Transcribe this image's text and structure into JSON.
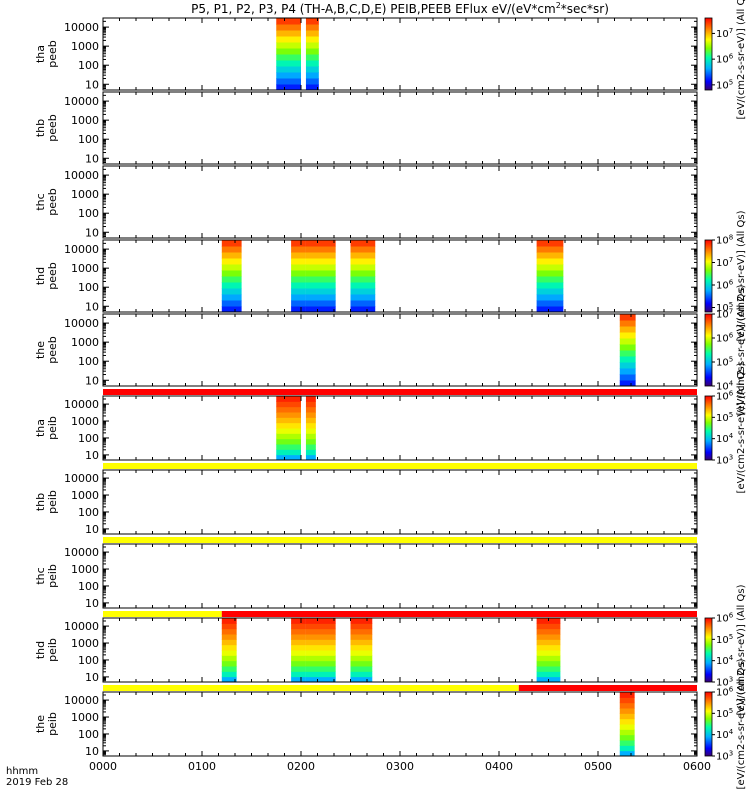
{
  "figure": {
    "title": "P5, P1, P2, P3, P4 (TH-A,B,C,D,E) PEIB,PEEB EFlux eV/(eV*cm",
    "title_sup": "2",
    "title_tail": "*sec*sr)",
    "footer_line1": "hhmm",
    "footer_line2": "2019 Feb 28"
  },
  "colors": {
    "flag_red": "#ff0000",
    "flag_yellow": "#ffff00",
    "axis": "#000000",
    "background": "#ffffff"
  },
  "chart_data": {
    "type": "heatmap",
    "description_units": "time in hhmm, energy in eV (log scale), color = energy flux",
    "x": {
      "label": "",
      "range": [
        "0000",
        "0600"
      ],
      "range_hours": [
        0,
        6
      ],
      "ticks": [
        "0000",
        "0100",
        "0200",
        "0300",
        "0400",
        "0500",
        "0600"
      ]
    },
    "y": {
      "scale": "log",
      "range": [
        5,
        30000
      ],
      "ticks": [
        "10",
        "100",
        "1000",
        "10000"
      ]
    },
    "panels": [
      {
        "label_line1": "tha",
        "label_line2": "peeb",
        "species": "electron",
        "blocks": [
          [
            1.75,
            2.0
          ],
          [
            2.05,
            2.18
          ]
        ],
        "color_range_log": [
          4.8,
          7.6
        ]
      },
      {
        "label_line1": "thb",
        "label_line2": "peeb",
        "species": "electron",
        "blocks": []
      },
      {
        "label_line1": "thc",
        "label_line2": "peeb",
        "species": "electron",
        "blocks": []
      },
      {
        "label_line1": "thd",
        "label_line2": "peeb",
        "species": "electron",
        "blocks": [
          [
            1.2,
            1.4
          ],
          [
            1.9,
            2.05
          ],
          [
            2.05,
            2.35
          ],
          [
            2.5,
            2.75
          ],
          [
            4.38,
            4.65
          ]
        ],
        "color_range_log": [
          4.8,
          8.0
        ]
      },
      {
        "label_line1": "the",
        "label_line2": "peeb",
        "species": "electron",
        "blocks": [
          [
            5.22,
            5.38
          ]
        ],
        "color_range_log": [
          4.0,
          7.0
        ]
      },
      {
        "label_line1": "tha",
        "label_line2": "peib",
        "species": "ion",
        "flag": {
          "segments": [
            [
              0,
              6,
              "red"
            ]
          ]
        },
        "blocks": [
          [
            1.75,
            2.0
          ],
          [
            2.05,
            2.15
          ]
        ],
        "color_range_log": [
          3.0,
          6.0
        ]
      },
      {
        "label_line1": "thb",
        "label_line2": "peib",
        "species": "ion",
        "flag": {
          "segments": [
            [
              0,
              6,
              "yellow"
            ]
          ]
        },
        "blocks": []
      },
      {
        "label_line1": "thc",
        "label_line2": "peib",
        "species": "ion",
        "flag": {
          "segments": [
            [
              0,
              6,
              "yellow"
            ]
          ]
        },
        "blocks": []
      },
      {
        "label_line1": "thd",
        "label_line2": "peib",
        "species": "ion",
        "flag": {
          "segments": [
            [
              0,
              1.2,
              "yellow"
            ],
            [
              1.2,
              6,
              "red"
            ]
          ]
        },
        "blocks": [
          [
            1.2,
            1.35
          ],
          [
            1.9,
            2.05
          ],
          [
            2.05,
            2.35
          ],
          [
            2.5,
            2.72
          ],
          [
            4.38,
            4.62
          ]
        ],
        "color_range_log": [
          3.0,
          6.0
        ]
      },
      {
        "label_line1": "the",
        "label_line2": "peib",
        "species": "ion",
        "flag": {
          "segments": [
            [
              0,
              4.2,
              "yellow"
            ],
            [
              4.2,
              6,
              "red"
            ]
          ]
        },
        "blocks": [
          [
            5.22,
            5.37
          ]
        ],
        "color_range_log": [
          3.0,
          6.0
        ]
      }
    ],
    "colorbars": [
      {
        "title": "[eV/(cm2-s-sr-eV)] (All Qs)",
        "range_log": [
          4.8,
          7.6
        ],
        "ticks": [
          {
            "base": "10",
            "exp": "7",
            "log": 7
          },
          {
            "base": "10",
            "exp": "6",
            "log": 6
          },
          {
            "base": "10",
            "exp": "5",
            "log": 5
          }
        ]
      },
      {
        "title": "[eV/(cm2-s-sr-eV)] (All Qs)",
        "range_log": [
          4.8,
          8.0
        ],
        "ticks": [
          {
            "base": "10",
            "exp": "8",
            "log": 8
          },
          {
            "base": "10",
            "exp": "7",
            "log": 7
          },
          {
            "base": "10",
            "exp": "6",
            "log": 6
          },
          {
            "base": "10",
            "exp": "5",
            "log": 5
          }
        ]
      },
      {
        "title": "[eV/(cm2-s-sr-eV)] (All Qs)",
        "range_log": [
          4.0,
          7.0
        ],
        "ticks": [
          {
            "base": "10",
            "exp": "7",
            "log": 7
          },
          {
            "base": "10",
            "exp": "6",
            "log": 6
          },
          {
            "base": "10",
            "exp": "5",
            "log": 5
          },
          {
            "base": "10",
            "exp": "4",
            "log": 4
          }
        ]
      },
      {
        "title": "[eV/(cm2-s-sr-eV)] (All Qs)",
        "range_log": [
          3.0,
          6.0
        ],
        "ticks": [
          {
            "base": "10",
            "exp": "6",
            "log": 6
          },
          {
            "base": "10",
            "exp": "5",
            "log": 5
          },
          {
            "base": "10",
            "exp": "4",
            "log": 4
          },
          {
            "base": "10",
            "exp": "3",
            "log": 3
          }
        ]
      },
      {
        "title": "[eV/(cm2-s-sr-eV)] (All Qs)",
        "range_log": [
          3.0,
          6.0
        ],
        "ticks": [
          {
            "base": "10",
            "exp": "6",
            "log": 6
          },
          {
            "base": "10",
            "exp": "5",
            "log": 5
          },
          {
            "base": "10",
            "exp": "4",
            "log": 4
          },
          {
            "base": "10",
            "exp": "3",
            "log": 3
          }
        ]
      },
      {
        "title": "[eV/(cm2-s-sr-eV)] (All Qs)",
        "range_log": [
          3.0,
          6.0
        ],
        "ticks": [
          {
            "base": "10",
            "exp": "6",
            "log": 6
          },
          {
            "base": "10",
            "exp": "5",
            "log": 5
          },
          {
            "base": "10",
            "exp": "4",
            "log": 4
          },
          {
            "base": "10",
            "exp": "3",
            "log": 3
          }
        ]
      }
    ]
  }
}
